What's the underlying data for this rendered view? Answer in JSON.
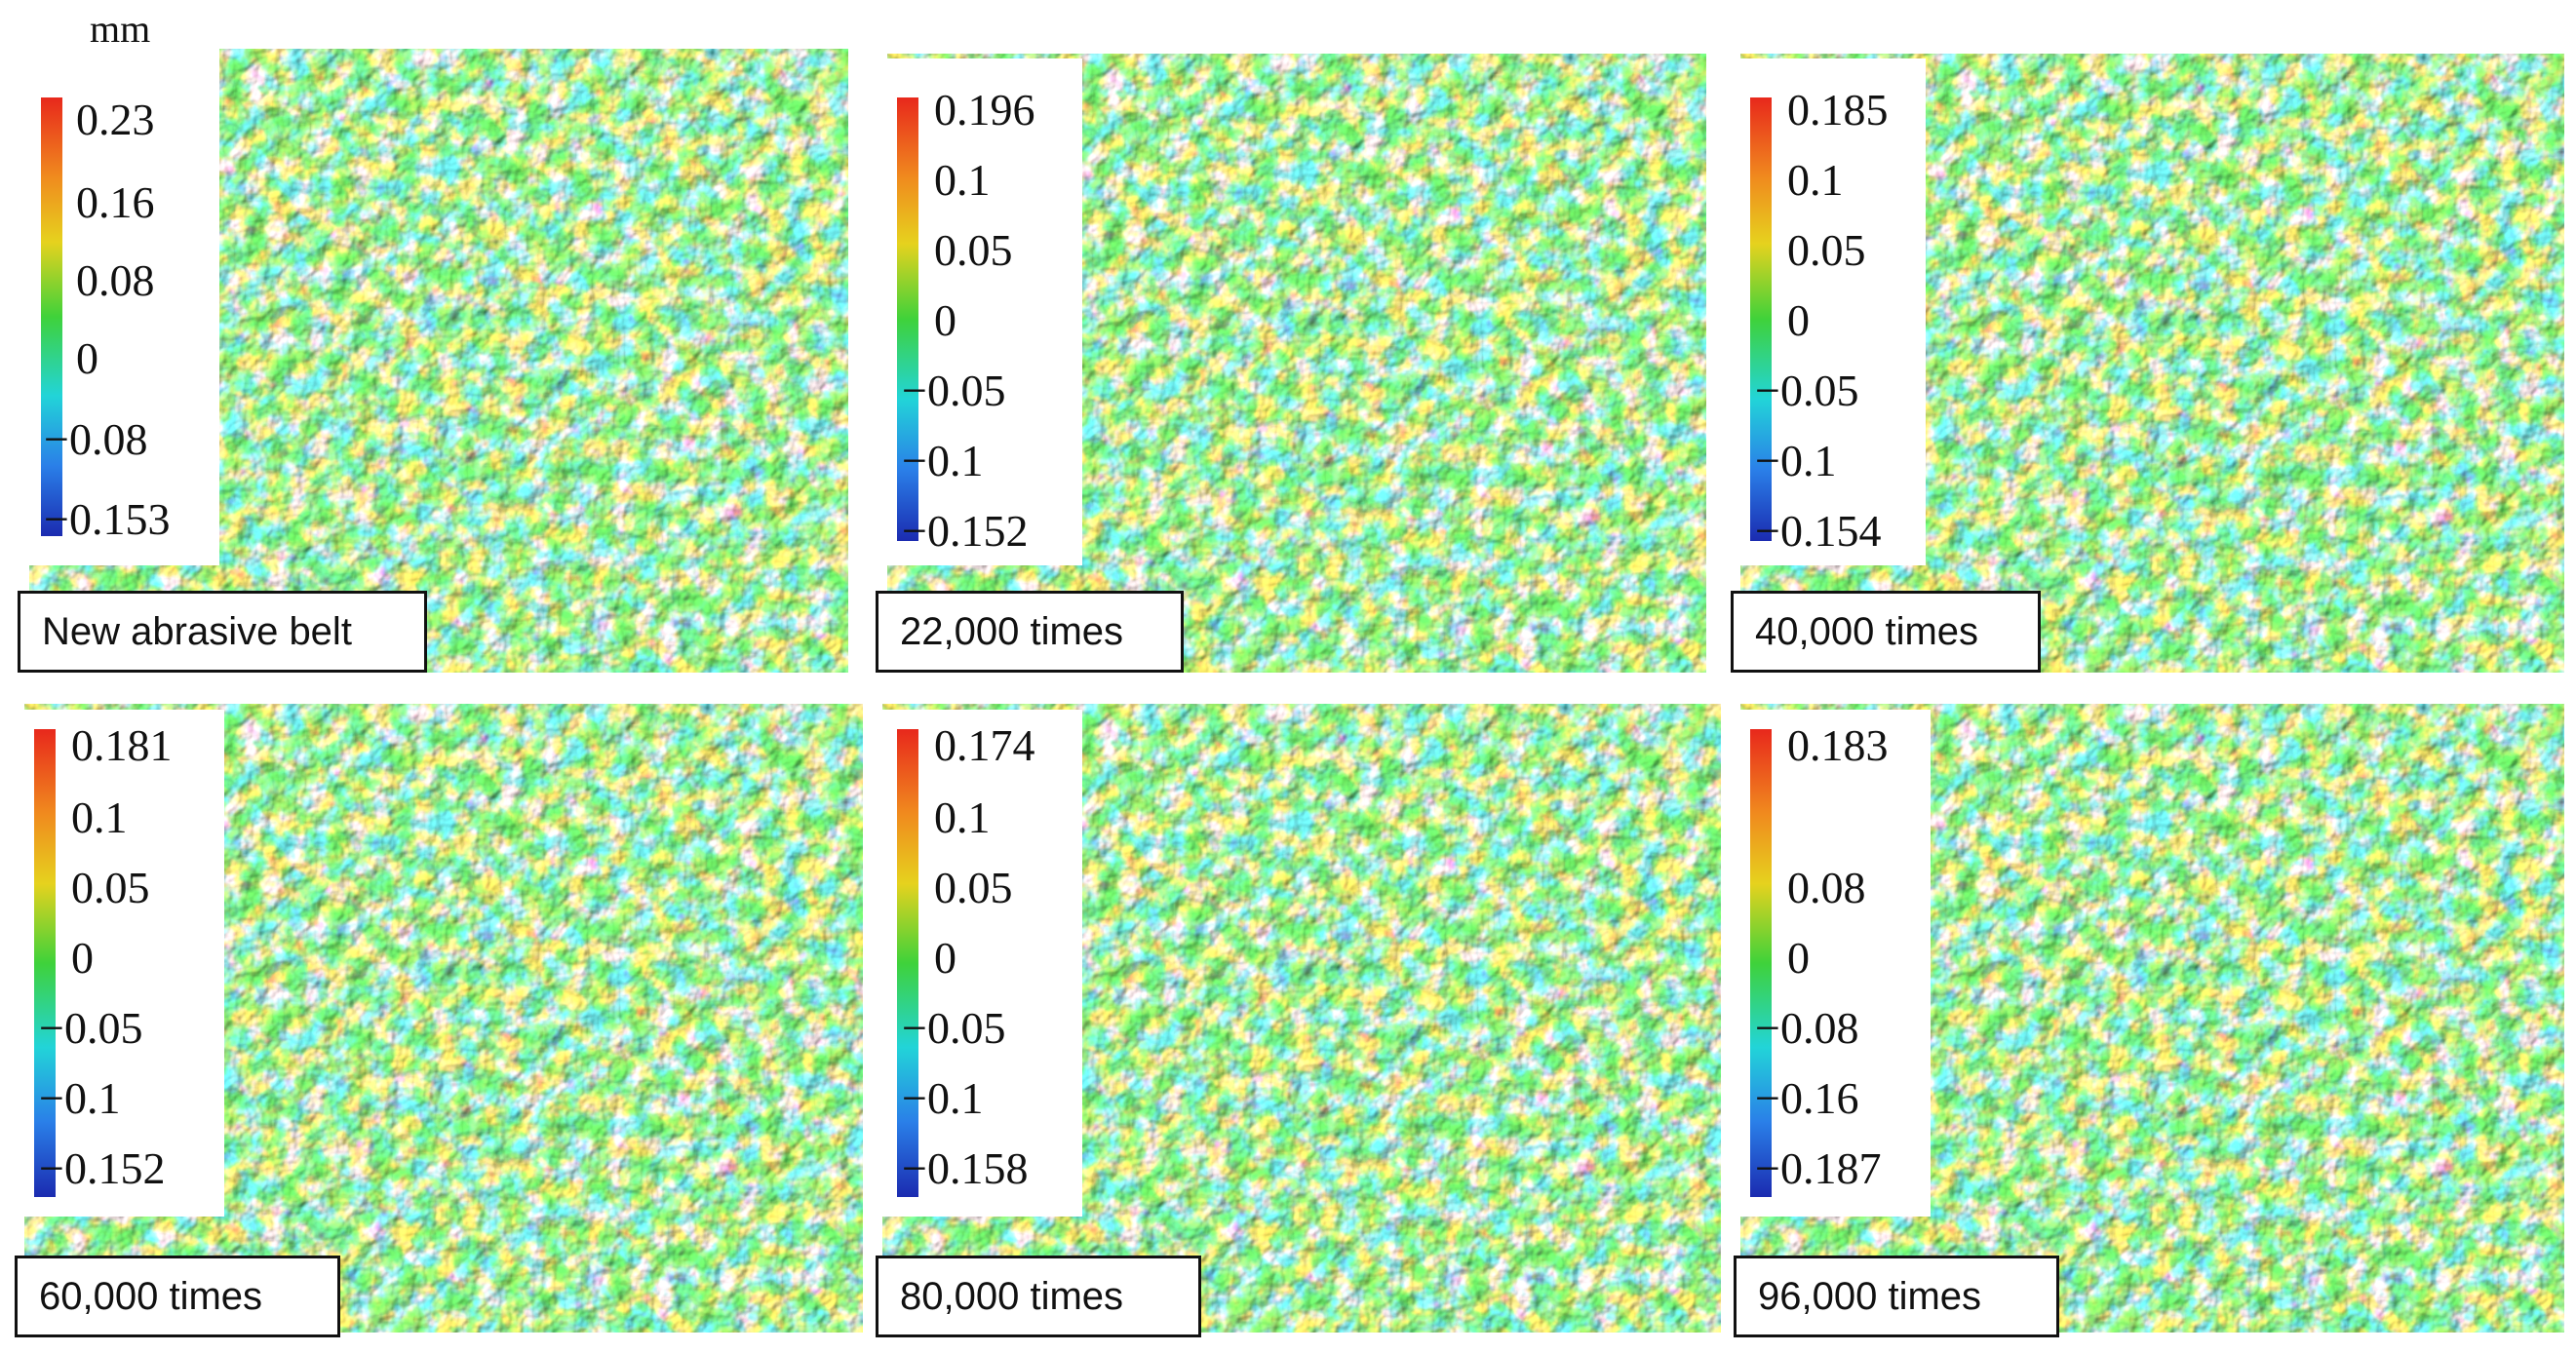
{
  "unit": "mm",
  "panels": [
    {
      "label": "New abrasive belt",
      "ticks": [
        "0.23",
        "0.16",
        "0.08",
        "0",
        "−0.08",
        "−0.153"
      ]
    },
    {
      "label": "22,000 times",
      "ticks": [
        "0.196",
        "0.1",
        "0.05",
        "0",
        "−0.05",
        "−0.1",
        "−0.152"
      ]
    },
    {
      "label": "40,000 times",
      "ticks": [
        "0.185",
        "0.1",
        "0.05",
        "0",
        "−0.05",
        "−0.1",
        "−0.154"
      ]
    },
    {
      "label": "60,000 times",
      "ticks": [
        "0.181",
        "0.1",
        "0.05",
        "0",
        "−0.05",
        "−0.1",
        "−0.152"
      ]
    },
    {
      "label": "80,000 times",
      "ticks": [
        "0.174",
        "0.1",
        "0.05",
        "0",
        "−0.05",
        "−0.1",
        "−0.158"
      ]
    },
    {
      "label": "96,000 times",
      "ticks": [
        "0.183",
        "0.08",
        "0",
        "−0.08",
        "−0.16",
        "−0.187"
      ]
    }
  ],
  "colors": {
    "high": "#e8281c",
    "mid_high": "#e6d21e",
    "zero": "#3fd23a",
    "mid_low": "#22d4d8",
    "low": "#1b2bb0"
  }
}
